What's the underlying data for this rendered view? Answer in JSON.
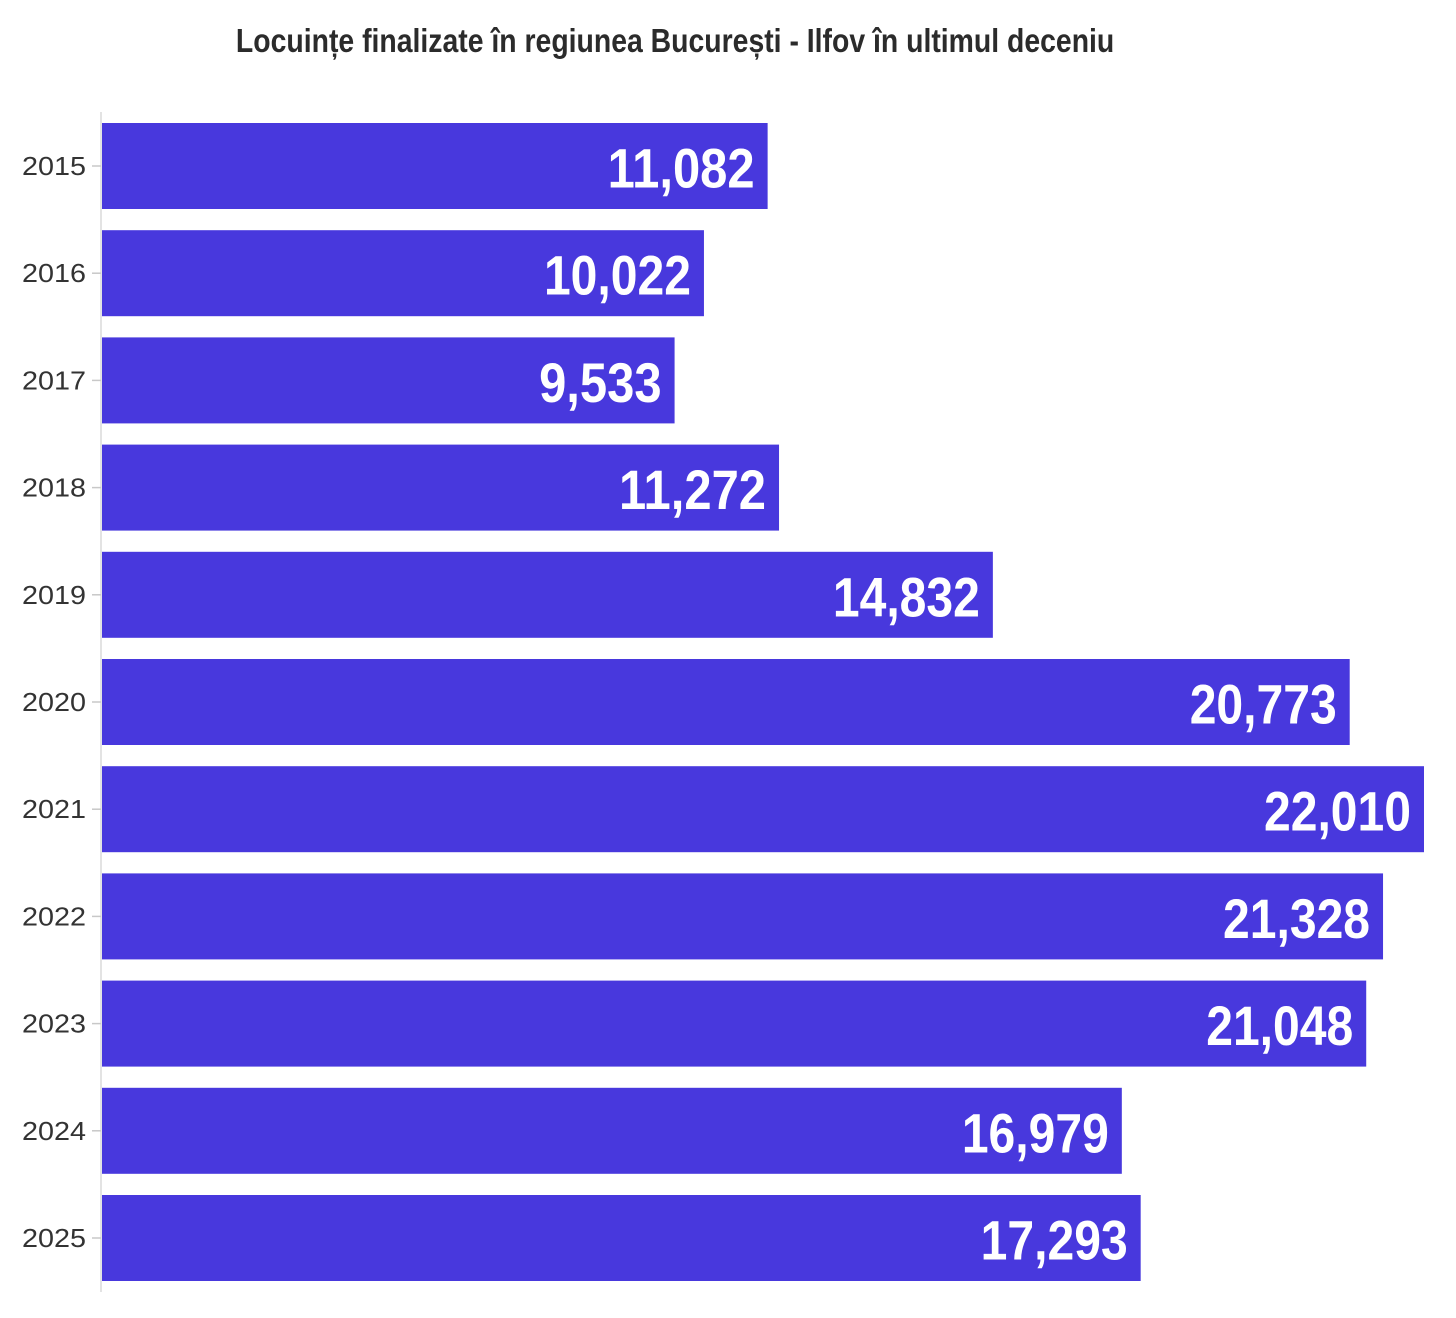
{
  "colors": {
    "bar": "#4838DD",
    "axis": "#e3e3e3",
    "tick_text": "#333333",
    "title": "#2b2b2b"
  },
  "chart_data": {
    "type": "bar",
    "orientation": "horizontal",
    "title": "Locuințe finalizate în regiunea București - Ilfov în ultimul deceniu",
    "categories": [
      "2015",
      "2016",
      "2017",
      "2018",
      "2019",
      "2020",
      "2021",
      "2022",
      "2023",
      "2024",
      "2025"
    ],
    "values": [
      11082,
      10022,
      9533,
      11272,
      14832,
      20773,
      22010,
      21328,
      21048,
      16979,
      17293
    ],
    "value_labels": [
      "11,082",
      "10,022",
      "9,533",
      "11,272",
      "14,832",
      "20,773",
      "22,010",
      "21,328",
      "21,048",
      "16,979",
      "17,293"
    ],
    "xlim": [
      0,
      22010
    ],
    "xlabel": "",
    "ylabel": "",
    "grid": false,
    "legend": "none"
  }
}
